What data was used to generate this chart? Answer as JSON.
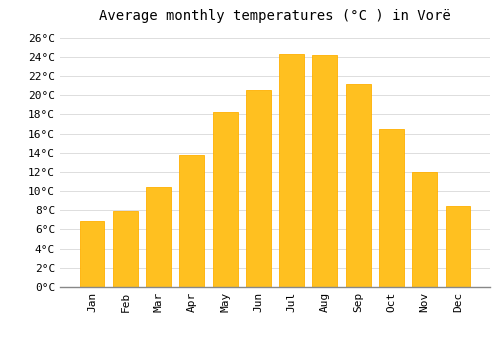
{
  "title": "Average monthly temperatures (°C ) in Vorë",
  "months": [
    "Jan",
    "Feb",
    "Mar",
    "Apr",
    "May",
    "Jun",
    "Jul",
    "Aug",
    "Sep",
    "Oct",
    "Nov",
    "Dec"
  ],
  "values": [
    6.9,
    7.9,
    10.4,
    13.8,
    18.2,
    20.5,
    24.3,
    24.2,
    21.2,
    16.5,
    12.0,
    8.4
  ],
  "bar_color": "#FFC020",
  "bar_edge_color": "#FFB000",
  "background_color": "#FFFFFF",
  "grid_color": "#DDDDDD",
  "ylim": [
    0,
    27
  ],
  "ytick_values": [
    0,
    2,
    4,
    6,
    8,
    10,
    12,
    14,
    16,
    18,
    20,
    22,
    24,
    26
  ],
  "title_fontsize": 10,
  "tick_fontsize": 8
}
